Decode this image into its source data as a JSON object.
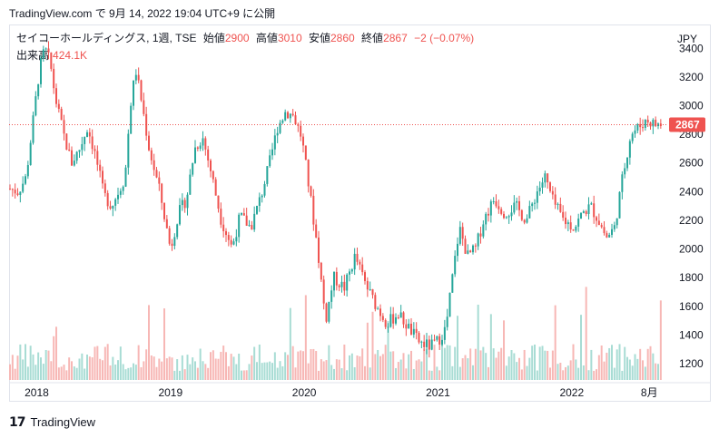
{
  "header": {
    "source_text": "TradingView.com で 9月 14, 2022 19:04 UTC+9 に公開"
  },
  "legend": {
    "symbol": "セイコーホールディングス, 1週, TSE",
    "open_label": "始値",
    "open": "2900",
    "high_label": "高値",
    "high": "3010",
    "low_label": "安値",
    "low": "2860",
    "close_label": "終値",
    "close": "2867",
    "change": "−2 (−0.07%)",
    "volume_label": "出来高",
    "volume": "424.1K"
  },
  "currency": "JPY",
  "footer": {
    "brand": "TradingView"
  },
  "colors": {
    "up": "#26a69a",
    "down": "#ef5350",
    "up_volume": "#a8dcd4",
    "down_volume": "#f7b7b5",
    "last_price_bg": "#ef5350"
  },
  "chart_data": {
    "type": "candlestick",
    "y_axis_ticks": [
      1200,
      1400,
      1600,
      1800,
      2000,
      2200,
      2400,
      2600,
      2800,
      3000,
      3200,
      3400
    ],
    "x_axis_labels": [
      "2018",
      "2019",
      "2020",
      "2021",
      "2022",
      "8月"
    ],
    "ylim": [
      1080,
      3560
    ],
    "last_price": 2867,
    "last_price_label": "2867",
    "price_path": [
      [
        2017.8,
        2420
      ],
      [
        2017.86,
        2400
      ],
      [
        2017.92,
        2500
      ],
      [
        2017.96,
        2800
      ],
      [
        2018.02,
        3250
      ],
      [
        2018.06,
        3400
      ],
      [
        2018.1,
        3300
      ],
      [
        2018.14,
        3050
      ],
      [
        2018.2,
        2800
      ],
      [
        2018.26,
        2600
      ],
      [
        2018.32,
        2700
      ],
      [
        2018.38,
        2850
      ],
      [
        2018.44,
        2650
      ],
      [
        2018.5,
        2380
      ],
      [
        2018.56,
        2300
      ],
      [
        2018.62,
        2420
      ],
      [
        2018.66,
        2500
      ],
      [
        2018.7,
        3000
      ],
      [
        2018.74,
        3250
      ],
      [
        2018.78,
        3050
      ],
      [
        2018.84,
        2700
      ],
      [
        2018.92,
        2400
      ],
      [
        2019.0,
        2000
      ],
      [
        2019.06,
        2250
      ],
      [
        2019.12,
        2350
      ],
      [
        2019.18,
        2700
      ],
      [
        2019.24,
        2780
      ],
      [
        2019.3,
        2550
      ],
      [
        2019.38,
        2200
      ],
      [
        2019.46,
        2010
      ],
      [
        2019.52,
        2230
      ],
      [
        2019.6,
        2150
      ],
      [
        2019.68,
        2380
      ],
      [
        2019.74,
        2600
      ],
      [
        2019.8,
        2850
      ],
      [
        2019.86,
        2960
      ],
      [
        2019.92,
        2930
      ],
      [
        2019.98,
        2780
      ],
      [
        2020.04,
        2400
      ],
      [
        2020.1,
        2000
      ],
      [
        2020.16,
        1500
      ],
      [
        2020.22,
        1800
      ],
      [
        2020.3,
        1730
      ],
      [
        2020.38,
        1950
      ],
      [
        2020.46,
        1750
      ],
      [
        2020.54,
        1600
      ],
      [
        2020.62,
        1480
      ],
      [
        2020.7,
        1550
      ],
      [
        2020.78,
        1450
      ],
      [
        2020.86,
        1350
      ],
      [
        2020.94,
        1320
      ],
      [
        2021.0,
        1360
      ],
      [
        2021.06,
        1450
      ],
      [
        2021.1,
        1750
      ],
      [
        2021.16,
        2150
      ],
      [
        2021.22,
        1950
      ],
      [
        2021.28,
        2000
      ],
      [
        2021.34,
        2200
      ],
      [
        2021.42,
        2350
      ],
      [
        2021.5,
        2250
      ],
      [
        2021.58,
        2300
      ],
      [
        2021.66,
        2200
      ],
      [
        2021.74,
        2400
      ],
      [
        2021.8,
        2500
      ],
      [
        2021.86,
        2330
      ],
      [
        2021.94,
        2200
      ],
      [
        2022.02,
        2150
      ],
      [
        2022.08,
        2250
      ],
      [
        2022.14,
        2300
      ],
      [
        2022.2,
        2200
      ],
      [
        2022.26,
        2080
      ],
      [
        2022.32,
        2150
      ],
      [
        2022.38,
        2500
      ],
      [
        2022.44,
        2800
      ],
      [
        2022.5,
        2850
      ],
      [
        2022.56,
        2900
      ],
      [
        2022.62,
        2870
      ],
      [
        2022.66,
        2867
      ]
    ]
  }
}
